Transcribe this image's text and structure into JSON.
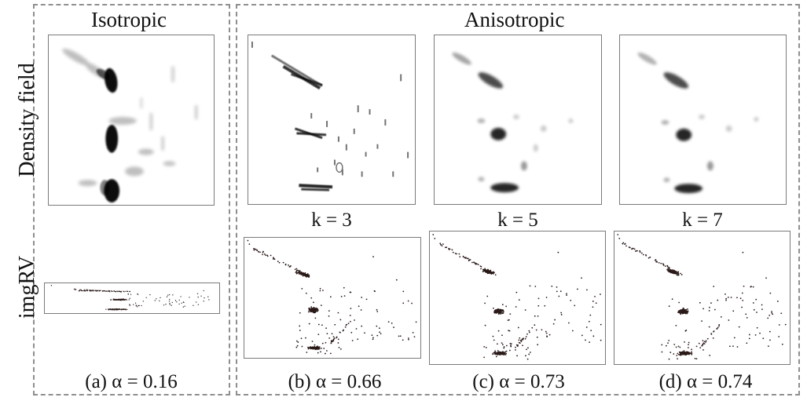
{
  "headers": {
    "isotropic": "Isotropic",
    "anisotropic": "Anisotropic"
  },
  "rows": {
    "density": "Density field",
    "imgrv": "imgRV"
  },
  "k_labels": [
    "k = 3",
    "k = 5",
    "k = 7"
  ],
  "captions": [
    "(a) α = 0.16",
    "(b) α = 0.66",
    "(c) α = 0.73",
    "(d) α = 0.74"
  ],
  "colors": {
    "dashed_border": "#8e8e8e",
    "frame": "#7a7a7a",
    "dots": "#2a1a18",
    "ink": "#111111"
  }
}
